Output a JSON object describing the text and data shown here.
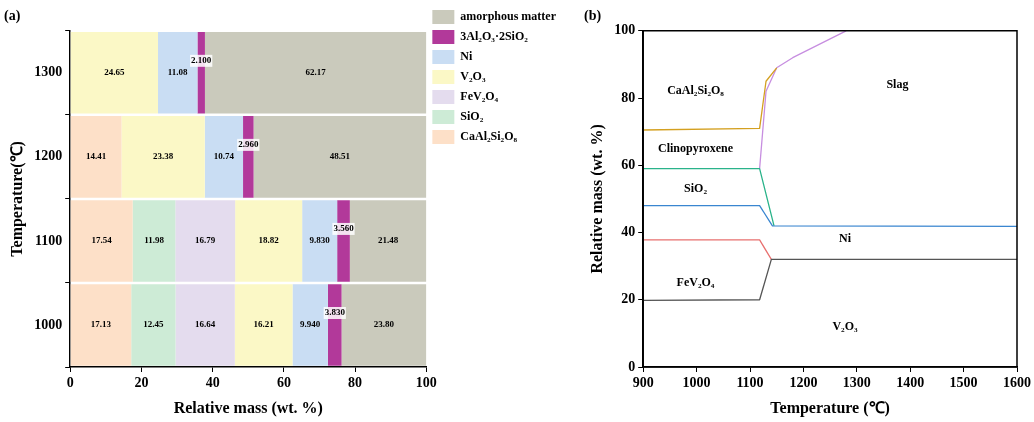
{
  "chart_data": [
    {
      "type": "bar",
      "orientation": "horizontal",
      "stacked": true,
      "title": "(a)",
      "xlabel": "Relative mass (wt. %)",
      "ylabel": "Temperature(℃)",
      "categories": [
        "1300",
        "1200",
        "1100",
        "1000"
      ],
      "xlim": [
        0,
        100
      ],
      "xticks": [
        0,
        20,
        40,
        60,
        80,
        100
      ],
      "grid": false,
      "legend": "top right",
      "series": [
        {
          "name": "CaAl₂Si₂O₈",
          "color": "#fde0c8",
          "values": [
            null,
            14.41,
            17.54,
            17.13
          ],
          "value_labels": [
            null,
            "14.41",
            "17.54",
            "17.13"
          ]
        },
        {
          "name": "SiO₂",
          "color": "#cdebd6",
          "values": [
            null,
            null,
            11.98,
            12.45
          ],
          "value_labels": [
            null,
            null,
            "11.98",
            "12.45"
          ]
        },
        {
          "name": "FeV₂O₄",
          "color": "#e4dcee",
          "values": [
            null,
            null,
            16.79,
            16.64
          ],
          "value_labels": [
            null,
            null,
            "16.79",
            "16.64"
          ]
        },
        {
          "name": "V₂O₃",
          "color": "#fbf8c6",
          "values": [
            24.65,
            23.38,
            18.82,
            16.21
          ],
          "value_labels": [
            "24.65",
            "23.38",
            "18.82",
            "16.21"
          ]
        },
        {
          "name": "Ni",
          "color": "#c9ddf3",
          "values": [
            11.08,
            10.74,
            9.83,
            9.94
          ],
          "value_labels": [
            "11.08",
            "10.74",
            "9.830",
            "9.940"
          ]
        },
        {
          "name": "3Al₂O₃·2SiO₂",
          "color": "#b2399a",
          "values": [
            2.1,
            2.96,
            3.56,
            3.83
          ],
          "value_labels": [
            "2.100",
            "2.960",
            "3.560",
            "3.830"
          ]
        },
        {
          "name": "amorphous matter",
          "color": "#cacabc",
          "values": [
            62.17,
            48.51,
            21.48,
            23.8
          ],
          "value_labels": [
            "62.17",
            "48.51",
            "21.48",
            "23.80"
          ]
        }
      ]
    },
    {
      "type": "line",
      "title": "(b)",
      "xlabel": "Temperature (℃)",
      "ylabel": "Relative mass (wt. %)",
      "xlim": [
        900,
        1600
      ],
      "xticks": [
        900,
        1000,
        1100,
        1200,
        1300,
        1400,
        1500,
        1600
      ],
      "ylim": [
        0,
        100
      ],
      "yticks": [
        0,
        20,
        40,
        60,
        80,
        100
      ],
      "grid": false,
      "legend": false,
      "marker": "none",
      "line_style": "solid",
      "series": [
        {
          "color": "#555555",
          "x": [
            900,
            1118,
            1140,
            1600
          ],
          "values": [
            19.8,
            20,
            32,
            32
          ]
        },
        {
          "color": "#e8706f",
          "x": [
            900,
            1118,
            1140
          ],
          "values": [
            37.8,
            37.8,
            32
          ]
        },
        {
          "color": "#3a86d0",
          "x": [
            900,
            1118,
            1142,
            1600
          ],
          "values": [
            48,
            48,
            42,
            41.8
          ]
        },
        {
          "color": "#2ab38a",
          "x": [
            900,
            1118,
            1145
          ],
          "values": [
            59,
            59,
            42
          ]
        },
        {
          "color": "#d4a020",
          "x": [
            900,
            1118,
            1130,
            1150
          ],
          "values": [
            70.5,
            71,
            85,
            89
          ]
        },
        {
          "color": "#c78ee0",
          "x": [
            1118,
            1130,
            1150,
            1180,
            1280
          ],
          "values": [
            59,
            82,
            89,
            92,
            100
          ]
        }
      ],
      "annotations": [
        "CaAl₂Si₂O₈",
        "Clinopyroxene",
        "SiO₂",
        "FeV₂O₄",
        "Ni",
        "V₂O₃",
        "Slag"
      ]
    }
  ]
}
